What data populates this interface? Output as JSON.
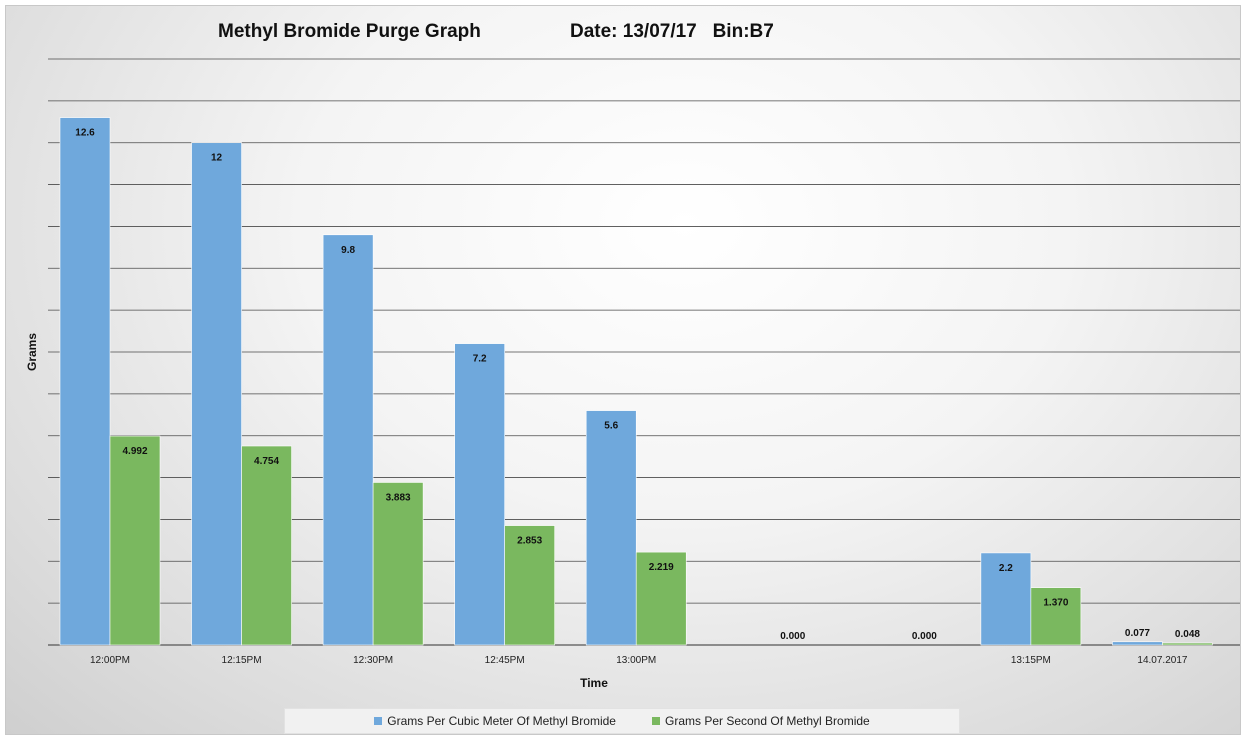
{
  "chart_data": {
    "type": "bar",
    "title": "Methyl Bromide Purge Graph",
    "subtitle": "Date: 13/07/17   Bin:B7",
    "xlabel": "Time",
    "ylabel": "Grams",
    "ylim": [
      0,
      14
    ],
    "grid": true,
    "legend_position": "bottom",
    "categories": [
      "12:00PM",
      "12:15PM",
      "12:30PM",
      "12:45PM",
      "13:00PM",
      "",
      "",
      "13:15PM",
      "14.07.2017"
    ],
    "series": [
      {
        "name": "Grams Per Cubic Meter Of Methyl Bromide",
        "color": "#6fa8dc",
        "values": [
          12.6,
          12,
          9.8,
          7.2,
          5.6,
          null,
          null,
          2.2,
          0.077
        ],
        "labels": [
          "12.6",
          "12",
          "9.8",
          "7.2",
          "5.6",
          "",
          "",
          "2.2",
          "0.077"
        ]
      },
      {
        "name": "Grams Per Second Of Methyl Bromide",
        "color": "#7ab85f",
        "values": [
          4.992,
          4.754,
          3.883,
          2.853,
          2.219,
          0,
          0,
          1.37,
          0.048
        ],
        "labels": [
          "4.992",
          "4.754",
          "3.883",
          "2.853",
          "2.219",
          "0.000",
          "0.000",
          "1.370",
          "0.048"
        ]
      }
    ]
  }
}
